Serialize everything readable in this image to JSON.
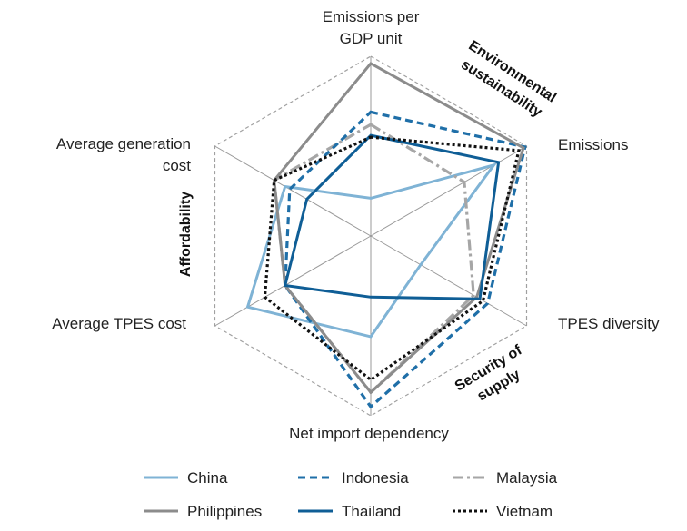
{
  "chart_data": {
    "type": "radar",
    "axes": [
      {
        "label_lines": [
          "Emissions per",
          "GDP unit"
        ]
      },
      {
        "label_lines": [
          "Emissions"
        ]
      },
      {
        "label_lines": [
          "TPES diversity"
        ]
      },
      {
        "label_lines": [
          "Net import dependency"
        ]
      },
      {
        "label_lines": [
          "Average TPES cost"
        ]
      },
      {
        "label_lines": [
          "Average generation",
          "cost"
        ]
      }
    ],
    "scale": [
      0,
      1
    ],
    "grid": "dashed hexagon at outer ring",
    "groups": [
      {
        "label_lines": [
          "Environmental",
          "sustainability"
        ]
      },
      {
        "label_lines": [
          "Security of",
          "supply"
        ]
      },
      {
        "label_lines": [
          "Affordability"
        ]
      }
    ],
    "series": [
      {
        "name": "China",
        "color": "#7fb3d5",
        "style": "solid",
        "values": [
          0.21,
          0.79,
          0.32,
          0.56,
          0.79,
          0.55
        ]
      },
      {
        "name": "Indonesia",
        "color": "#1f6fa8",
        "style": "dashed",
        "values": [
          0.69,
          0.99,
          0.75,
          0.95,
          0.55,
          0.52
        ]
      },
      {
        "name": "Malaysia",
        "color": "#a6a6a6",
        "style": "dashdot",
        "values": [
          0.62,
          0.6,
          0.66,
          0.87,
          0.55,
          0.62
        ]
      },
      {
        "name": "Philippines",
        "color": "#8c8c8c",
        "style": "solid",
        "values": [
          0.96,
          0.98,
          0.68,
          0.87,
          0.55,
          0.62
        ]
      },
      {
        "name": "Thailand",
        "color": "#0f5e96",
        "style": "solid",
        "values": [
          0.56,
          0.82,
          0.7,
          0.34,
          0.55,
          0.41
        ]
      },
      {
        "name": "Vietnam",
        "color": "#111111",
        "style": "dotted",
        "values": [
          0.55,
          0.95,
          0.72,
          0.8,
          0.68,
          0.62
        ]
      }
    ],
    "legend": {
      "position": "bottom",
      "columns": 3
    }
  }
}
